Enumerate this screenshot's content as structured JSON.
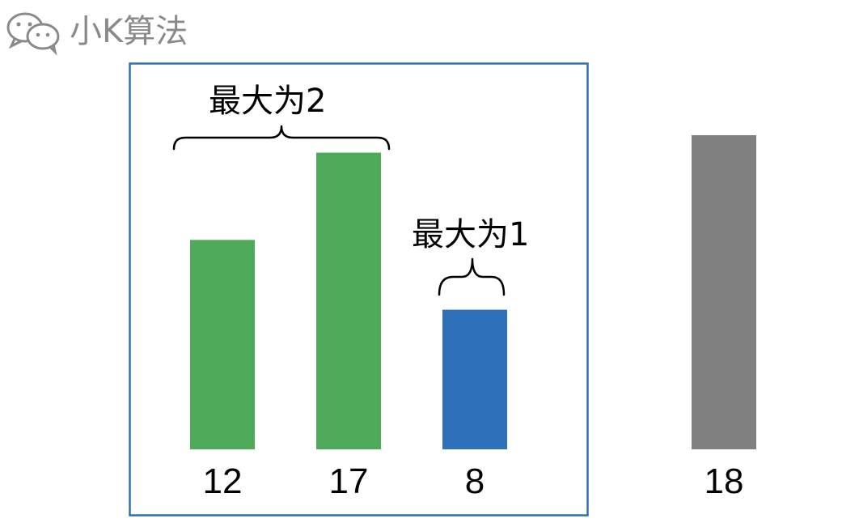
{
  "watermark": {
    "text": "小K算法",
    "icon": "wechat-icon"
  },
  "selection_box": {
    "color": "#2e6fb6"
  },
  "annotations": [
    {
      "label": "最大为2",
      "spans": [
        "12",
        "17"
      ]
    },
    {
      "label": "最大为1",
      "spans": [
        "8"
      ]
    }
  ],
  "colors": {
    "green": "#4faa5a",
    "blue": "#2f70bb",
    "gray": "#808080"
  },
  "chart_data": {
    "type": "bar",
    "categories": [
      "12",
      "17",
      "8",
      "18"
    ],
    "values": [
      12,
      17,
      8,
      18
    ],
    "bar_colors": [
      "green",
      "green",
      "blue",
      "gray"
    ],
    "ylim": [
      0,
      18
    ]
  }
}
